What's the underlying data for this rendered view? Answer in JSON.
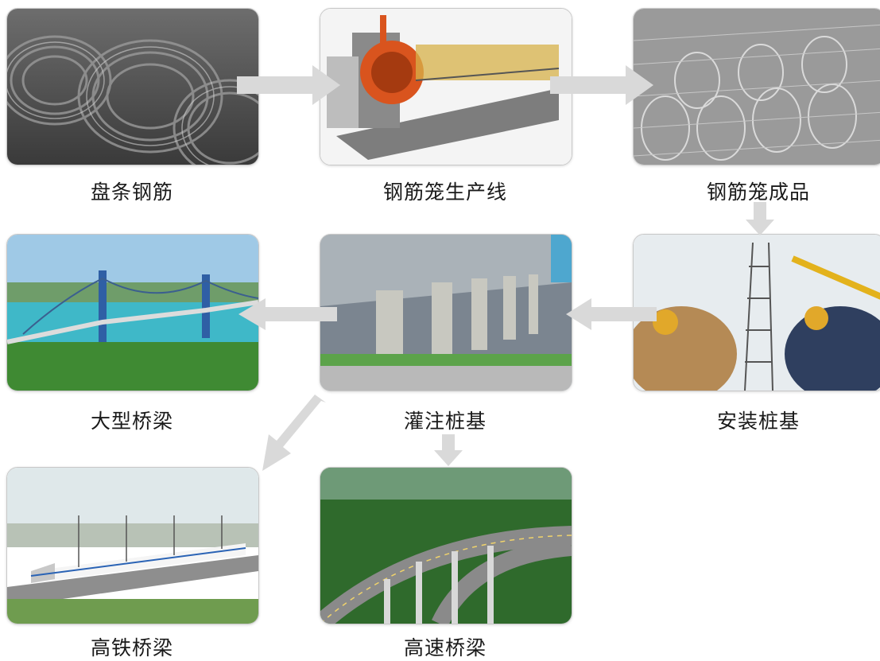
{
  "steps": {
    "wire_rod": "盘条钢筋",
    "cage_line": "钢筋笼生产线",
    "cage_product": "钢筋笼成品",
    "install_pile": "安装桩基",
    "cast_pile": "灌注桩基",
    "large_bridge": "大型桥梁",
    "hsr_bridge": "高铁桥梁",
    "highway_bridge": "高速桥梁"
  },
  "colors": {
    "arrow": "#d9d9d9",
    "caption": "#1a1a1a"
  }
}
